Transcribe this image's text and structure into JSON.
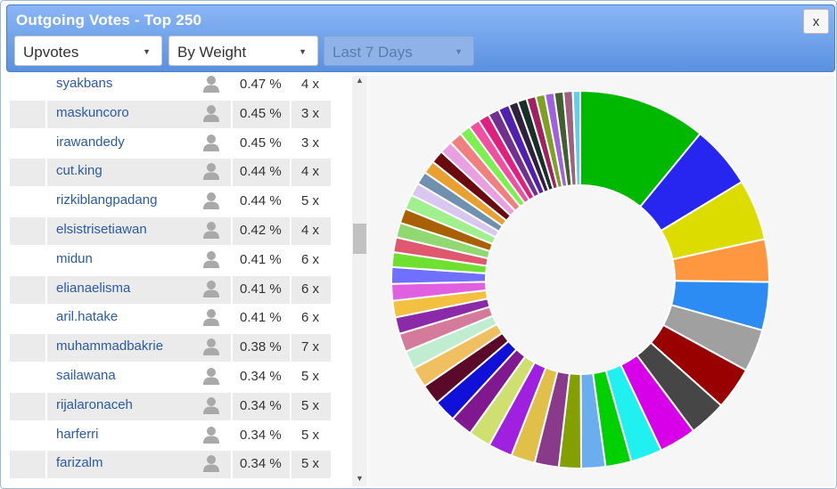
{
  "window": {
    "title": "Outgoing Votes - Top 250",
    "close_label": "x"
  },
  "filters": {
    "type": "Upvotes",
    "sort": "By Weight",
    "period": "Last 7 Days"
  },
  "icons": {
    "caret": "caret-down-icon",
    "avatar": "user-avatar-icon",
    "scroll_up": "scroll-up-arrow-icon",
    "scroll_down": "scroll-down-arrow-icon"
  },
  "rows": [
    {
      "name": "syakbans",
      "pct": "0.47 %",
      "count": "4 x"
    },
    {
      "name": "maskuncoro",
      "pct": "0.45 %",
      "count": "3 x"
    },
    {
      "name": "irawandedy",
      "pct": "0.45 %",
      "count": "3 x"
    },
    {
      "name": "cut.king",
      "pct": "0.44 %",
      "count": "4 x"
    },
    {
      "name": "rizkiblangpadang",
      "pct": "0.44 %",
      "count": "5 x"
    },
    {
      "name": "elsistrisetiawan",
      "pct": "0.42 %",
      "count": "4 x"
    },
    {
      "name": "midun",
      "pct": "0.41 %",
      "count": "6 x"
    },
    {
      "name": "elianaelisma",
      "pct": "0.41 %",
      "count": "6 x"
    },
    {
      "name": "aril.hatake",
      "pct": "0.41 %",
      "count": "6 x"
    },
    {
      "name": "muhammadbakrie",
      "pct": "0.38 %",
      "count": "7 x"
    },
    {
      "name": "sailawana",
      "pct": "0.34 %",
      "count": "5 x"
    },
    {
      "name": "rijalaronaceh",
      "pct": "0.34 %",
      "count": "5 x"
    },
    {
      "name": "harferri",
      "pct": "0.34 %",
      "count": "5 x"
    },
    {
      "name": "farizalm",
      "pct": "0.34 %",
      "count": "5 x"
    }
  ],
  "chart_data": {
    "type": "pie",
    "donut": true,
    "slices": [
      {
        "value": 6.9,
        "color": "#00b800"
      },
      {
        "value": 3.4,
        "color": "#2626f0"
      },
      {
        "value": 3.3,
        "color": "#dcdc00"
      },
      {
        "value": 2.3,
        "color": "#ff9640"
      },
      {
        "value": 2.6,
        "color": "#2c8cf4"
      },
      {
        "value": 2.3,
        "color": "#a0a0a0"
      },
      {
        "value": 2.3,
        "color": "#990000"
      },
      {
        "value": 2.0,
        "color": "#464646"
      },
      {
        "value": 2.0,
        "color": "#d800e8"
      },
      {
        "value": 1.7,
        "color": "#20f0f0"
      },
      {
        "value": 1.4,
        "color": "#00d000"
      },
      {
        "value": 1.3,
        "color": "#6aaef0"
      },
      {
        "value": 1.2,
        "color": "#84a000"
      },
      {
        "value": 1.3,
        "color": "#8a3a8a"
      },
      {
        "value": 1.3,
        "color": "#e0c048"
      },
      {
        "value": 1.3,
        "color": "#a020e0"
      },
      {
        "value": 1.2,
        "color": "#d0e070"
      },
      {
        "value": 1.2,
        "color": "#801890"
      },
      {
        "value": 1.2,
        "color": "#1010d8"
      },
      {
        "value": 1.1,
        "color": "#5a0a28"
      },
      {
        "value": 1.1,
        "color": "#f0c060"
      },
      {
        "value": 1.0,
        "color": "#c0ecd0"
      },
      {
        "value": 1.0,
        "color": "#d47a9a"
      },
      {
        "value": 0.9,
        "color": "#8a2aa8"
      },
      {
        "value": 0.9,
        "color": "#f4c040"
      },
      {
        "value": 0.9,
        "color": "#e060e0"
      },
      {
        "value": 0.9,
        "color": "#7070ff"
      },
      {
        "value": 0.8,
        "color": "#70e030"
      },
      {
        "value": 0.8,
        "color": "#e05870"
      },
      {
        "value": 0.8,
        "color": "#90d870"
      },
      {
        "value": 0.8,
        "color": "#a86000"
      },
      {
        "value": 0.8,
        "color": "#a0f090"
      },
      {
        "value": 0.7,
        "color": "#d8c8f0"
      },
      {
        "value": 0.7,
        "color": "#7090b0"
      },
      {
        "value": 0.7,
        "color": "#e8a030"
      },
      {
        "value": 0.7,
        "color": "#6a0a10"
      },
      {
        "value": 0.7,
        "color": "#e8a0e0"
      },
      {
        "value": 0.7,
        "color": "#f08080"
      },
      {
        "value": 0.6,
        "color": "#7cf050"
      },
      {
        "value": 0.6,
        "color": "#f050a0"
      },
      {
        "value": 0.6,
        "color": "#e02080"
      },
      {
        "value": 0.6,
        "color": "#703090"
      },
      {
        "value": 0.6,
        "color": "#5020b0"
      },
      {
        "value": 0.5,
        "color": "#302040"
      },
      {
        "value": 0.5,
        "color": "#183028"
      },
      {
        "value": 0.5,
        "color": "#a02060"
      },
      {
        "value": 0.5,
        "color": "#80a020"
      },
      {
        "value": 0.5,
        "color": "#a060e0"
      },
      {
        "value": 0.5,
        "color": "#406030"
      },
      {
        "value": 0.5,
        "color": "#a06080"
      },
      {
        "value": 0.4,
        "color": "#60d0e8"
      }
    ]
  }
}
